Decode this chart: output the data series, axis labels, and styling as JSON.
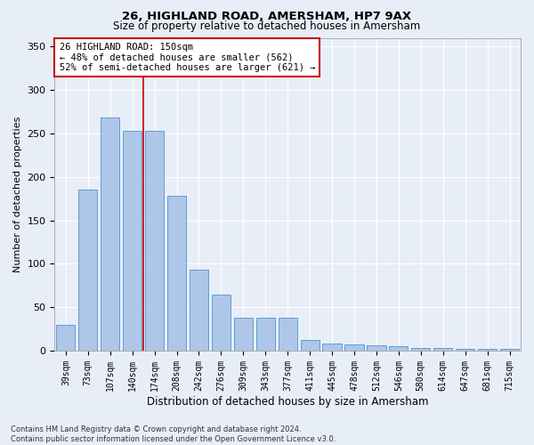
{
  "title1": "26, HIGHLAND ROAD, AMERSHAM, HP7 9AX",
  "title2": "Size of property relative to detached houses in Amersham",
  "xlabel": "Distribution of detached houses by size in Amersham",
  "ylabel": "Number of detached properties",
  "footer": "Contains HM Land Registry data © Crown copyright and database right 2024.\nContains public sector information licensed under the Open Government Licence v3.0.",
  "bin_labels": [
    "39sqm",
    "73sqm",
    "107sqm",
    "140sqm",
    "174sqm",
    "208sqm",
    "242sqm",
    "276sqm",
    "309sqm",
    "343sqm",
    "377sqm",
    "411sqm",
    "445sqm",
    "478sqm",
    "512sqm",
    "546sqm",
    "580sqm",
    "614sqm",
    "647sqm",
    "681sqm",
    "715sqm"
  ],
  "bar_values": [
    30,
    185,
    268,
    253,
    253,
    178,
    93,
    65,
    38,
    38,
    38,
    12,
    8,
    7,
    6,
    5,
    3,
    3,
    2,
    2,
    2
  ],
  "bar_color": "#aec6e8",
  "bar_edgecolor": "#5a9fd4",
  "background_color": "#e8eef7",
  "grid_color": "#ffffff",
  "red_line_x": 3.5,
  "annotation_text": "26 HIGHLAND ROAD: 150sqm\n← 48% of detached houses are smaller (562)\n52% of semi-detached houses are larger (621) →",
  "annotation_box_color": "#ffffff",
  "annotation_box_edgecolor": "#cc0000",
  "ylim": [
    0,
    360
  ],
  "yticks": [
    0,
    50,
    100,
    150,
    200,
    250,
    300,
    350
  ],
  "title1_fontsize": 9.5,
  "title2_fontsize": 8.5,
  "ylabel_fontsize": 8,
  "xlabel_fontsize": 8.5,
  "tick_fontsize": 7,
  "annotation_fontsize": 7.5,
  "footer_fontsize": 6
}
